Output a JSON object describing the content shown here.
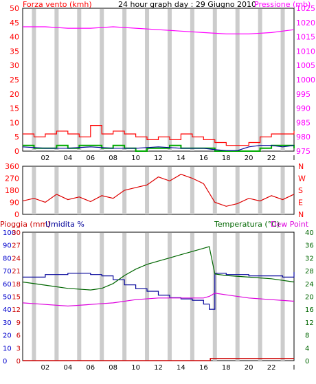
{
  "title": "24 hour graph day : 29 Giugno 2010",
  "colors": {
    "wind": "#ff0000",
    "gust": "#00aa00",
    "pressure": "#ff00ff",
    "direction": "#dd0000",
    "humidity": "#000099",
    "rain": "#cc0000",
    "temperature": "#006600",
    "dewpoint": "#dd00dd",
    "frame": "#000000",
    "grid": "#cccccc",
    "white": "#ffffff"
  },
  "chart_data": [
    {
      "type": "line",
      "panel": "wind_pressure",
      "labels": {
        "left": "Forza vento (kmh)",
        "right": "Pressione (mb)"
      },
      "x_ticks": [
        "02",
        "04",
        "06",
        "08",
        "10",
        "12",
        "14",
        "16",
        "18",
        "20",
        "22",
        "I"
      ],
      "y_left_ticks": [
        "0",
        "5",
        "10",
        "15",
        "20",
        "25",
        "30",
        "35",
        "40",
        "45",
        "50"
      ],
      "y_left_range": [
        0,
        50
      ],
      "y_right_ticks": [
        "975",
        "980",
        "985",
        "990",
        "995",
        "1000",
        "1005",
        "1010",
        "1015",
        "1020",
        "1025"
      ],
      "y_right_range": [
        975,
        1025
      ],
      "series": [
        {
          "key": "wind_peak",
          "x": [
            0,
            1,
            2,
            3,
            4,
            5,
            6,
            7,
            8,
            9,
            10,
            11,
            12,
            13,
            14,
            15,
            16,
            17,
            18,
            19,
            20,
            21,
            22,
            23,
            24
          ],
          "values": [
            6,
            5,
            6,
            7,
            6,
            5,
            9,
            6,
            7,
            6,
            5,
            4,
            5,
            4,
            6,
            5,
            4,
            3,
            2,
            2,
            3,
            5,
            6,
            6,
            7
          ]
        },
        {
          "key": "wind_avg",
          "x": [
            0,
            2,
            4,
            6,
            8,
            10,
            12,
            14,
            16,
            17,
            18,
            19,
            20,
            21,
            22,
            23,
            24
          ],
          "values": [
            1.5,
            1,
            1,
            1.5,
            1,
            1,
            1.5,
            1,
            1,
            0.5,
            0.2,
            0.2,
            1.5,
            2,
            2,
            1.5,
            2
          ]
        },
        {
          "key": "gust",
          "x": [
            0,
            1,
            2,
            3,
            4,
            5,
            6,
            7,
            8,
            9,
            10,
            11,
            12,
            13,
            14,
            15,
            16,
            17,
            18,
            19,
            20,
            21,
            22,
            23,
            24
          ],
          "values": [
            2,
            1,
            1,
            2,
            1,
            2,
            2,
            1,
            2,
            1,
            0,
            1,
            1,
            2,
            1,
            1,
            1,
            0,
            0,
            0,
            0,
            1,
            2,
            2,
            1
          ]
        },
        {
          "key": "pressure",
          "x": [
            0,
            2,
            4,
            6,
            8,
            10,
            12,
            14,
            16,
            18,
            20,
            22,
            24
          ],
          "values": [
            1018.5,
            1018.5,
            1018,
            1018,
            1018.5,
            1018,
            1017.5,
            1017,
            1016.5,
            1016,
            1016,
            1016.5,
            1017.5
          ]
        }
      ]
    },
    {
      "type": "line",
      "panel": "wind_direction",
      "y_left_ticks": [
        "0",
        "90",
        "180",
        "270",
        "360"
      ],
      "y_left_range": [
        0,
        360
      ],
      "y_right_ticks": [
        "N",
        "E",
        "S",
        "W",
        "N"
      ],
      "series": [
        {
          "key": "direction",
          "x": [
            0,
            1,
            2,
            3,
            4,
            5,
            6,
            7,
            8,
            9,
            10,
            11,
            12,
            13,
            14,
            15,
            16,
            17,
            18,
            19,
            20,
            21,
            22,
            23,
            24
          ],
          "values": [
            100,
            120,
            90,
            150,
            110,
            130,
            95,
            140,
            120,
            180,
            200,
            220,
            280,
            250,
            300,
            270,
            230,
            90,
            60,
            80,
            120,
            100,
            140,
            110,
            150
          ]
        }
      ]
    },
    {
      "type": "line",
      "panel": "rain_humidity_temperature",
      "labels": {
        "rain": "Pioggia (mm)",
        "humidity": "Umidita %",
        "temperature": "Temperatura (°C)",
        "dewpoint": "Dew Point"
      },
      "x_ticks": [
        "02",
        "04",
        "06",
        "08",
        "10",
        "12",
        "14",
        "16",
        "18",
        "20",
        "22",
        "I"
      ],
      "y_rain_ticks": [
        "0",
        "3",
        "6",
        "9",
        "12",
        "15",
        "18",
        "21",
        "24",
        "27",
        "30"
      ],
      "y_rain_range": [
        0,
        30
      ],
      "y_hum_ticks": [
        "0",
        "10",
        "20",
        "30",
        "40",
        "50",
        "60",
        "70",
        "80",
        "90",
        "100"
      ],
      "y_hum_range": [
        0,
        100
      ],
      "y_temp_ticks": [
        "0",
        "4",
        "8",
        "12",
        "16",
        "20",
        "24",
        "28",
        "32",
        "36",
        "40"
      ],
      "y_temp_range": [
        0,
        40
      ],
      "series": [
        {
          "key": "humidity",
          "x": [
            0,
            2,
            4,
            6,
            7,
            8,
            9,
            10,
            11,
            12,
            13,
            14,
            15,
            16,
            16.5,
            17,
            18,
            20,
            22,
            23,
            24
          ],
          "values": [
            65,
            67,
            68,
            67,
            66,
            63,
            59,
            56,
            54,
            51,
            49,
            48,
            47,
            44,
            40,
            68,
            67,
            66,
            66,
            65,
            69
          ]
        },
        {
          "key": "temperature",
          "x": [
            0,
            2,
            4,
            6,
            7,
            8,
            9,
            10,
            11,
            12,
            13,
            14,
            15,
            16,
            16.5,
            17,
            18,
            20,
            22,
            24
          ],
          "values": [
            24.5,
            23.5,
            22.5,
            22,
            22.5,
            24,
            26.5,
            28.5,
            30,
            31,
            32,
            33,
            34,
            35,
            35.5,
            27,
            26.5,
            26,
            25.5,
            24.5
          ]
        },
        {
          "key": "dewpoint",
          "x": [
            0,
            2,
            4,
            6,
            8,
            10,
            12,
            14,
            16,
            16.5,
            17,
            18,
            20,
            22,
            24
          ],
          "values": [
            18,
            17.5,
            17,
            17.5,
            18,
            19,
            19.5,
            19.5,
            19.5,
            20,
            21,
            20.5,
            19.5,
            19,
            18.5
          ]
        },
        {
          "key": "rain",
          "x": [
            0,
            16.5,
            16.6,
            24
          ],
          "values": [
            0,
            0,
            0.5,
            0.5
          ]
        }
      ]
    }
  ]
}
